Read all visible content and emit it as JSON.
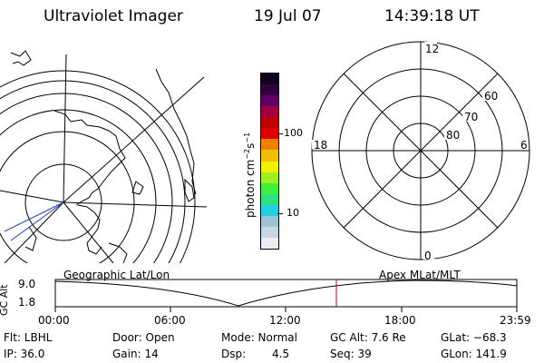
{
  "header": {
    "instrument": "Ultraviolet Imager",
    "date": "19 Jul 07",
    "time": "14:39:18 UT"
  },
  "colorbar": {
    "unit": "photon cm",
    "unit_sup1": "−2",
    "unit_s": "s",
    "unit_sup2": "−1",
    "tick_high": "100",
    "tick_low": "10",
    "colors": [
      "#e8eef4",
      "#c9d6e0",
      "#9cc4d4",
      "#22d0e0",
      "#30e080",
      "#40f040",
      "#a0f020",
      "#f0f000",
      "#f0c000",
      "#f08000",
      "#e00000",
      "#c00000",
      "#a00040",
      "#600060",
      "#300040",
      "#100020"
    ]
  },
  "polar_plot": {
    "label_top": "12",
    "label_bottom": "0",
    "label_left": "18",
    "label_right": "6",
    "lat_labels": [
      "60",
      "70",
      "80"
    ]
  },
  "timeline": {
    "y_axis_label": "GC Alt",
    "y_top": "9.0",
    "y_bottom": "1.8",
    "left_caption": "Geographic Lat/Lon",
    "right_caption": "Apex MLat/MLT",
    "ticks": [
      "00:00",
      "06:00",
      "12:00",
      "18:00",
      "23:59"
    ],
    "marker_color": "#c00000"
  },
  "info": {
    "flt": "Flt: LBHL",
    "door": "Door: Open",
    "mode": "Mode: Normal",
    "gc_alt": "GC Alt: 7.6 Re",
    "glat": "GLat: −68.3",
    "ip": "IP: 36.0",
    "gain": "Gain: 14",
    "dsp_label": "Dsp:",
    "dsp_value": "4.5",
    "seq": "Seq: 39",
    "glon": "GLon: 141.9"
  }
}
